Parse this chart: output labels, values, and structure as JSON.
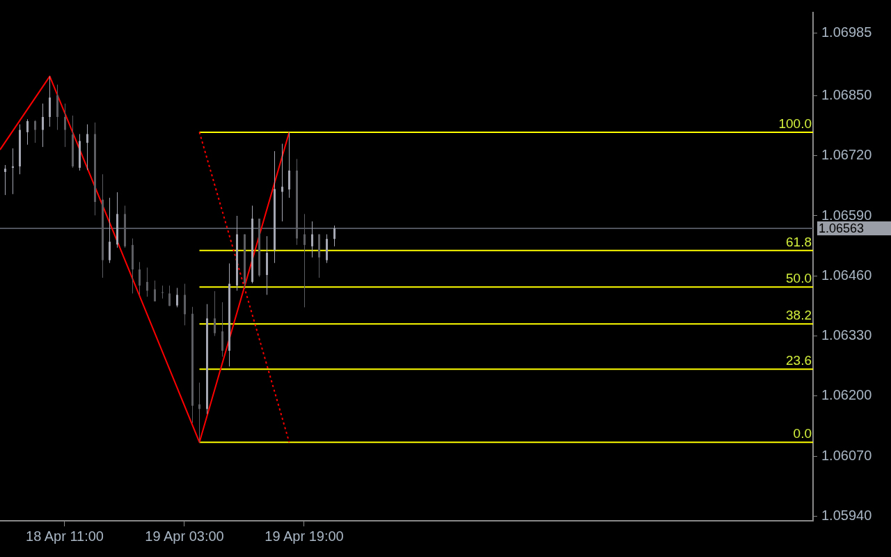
{
  "chart_data": {
    "type": "candlestick",
    "x": [
      "--04-18T03:00",
      "--04-18T04:00",
      "--04-18T05:00",
      "--04-18T06:00",
      "--04-18T07:00",
      "--04-18T08:00",
      "--04-18T09:00",
      "--04-18T10:00",
      "--04-18T11:00",
      "--04-18T12:00",
      "--04-18T13:00",
      "--04-18T14:00",
      "--04-18T15:00",
      "--04-18T16:00",
      "--04-18T17:00",
      "--04-18T18:00",
      "--04-18T19:00",
      "--04-18T20:00",
      "--04-18T21:00",
      "--04-18T22:00",
      "--04-18T23:00",
      "--04-19T00:00",
      "--04-19T01:00",
      "--04-19T02:00",
      "--04-19T03:00",
      "--04-19T04:00",
      "--04-19T05:00",
      "--04-19T06:00",
      "--04-19T07:00",
      "--04-19T08:00",
      "--04-19T09:00",
      "--04-19T10:00",
      "--04-19T11:00",
      "--04-19T12:00",
      "--04-19T13:00",
      "--04-19T14:00",
      "--04-19T15:00",
      "--04-19T16:00",
      "--04-19T17:00",
      "--04-19T18:00",
      "--04-19T19:00",
      "--04-19T20:00",
      "--04-19T21:00",
      "--04-19T22:00",
      "--04-19T23:00"
    ],
    "ohlc": [
      [
        1.06685,
        1.067,
        1.06635,
        1.06692
      ],
      [
        1.06694,
        1.06736,
        1.06637,
        1.06697
      ],
      [
        1.06697,
        1.06788,
        1.0668,
        1.06776
      ],
      [
        1.06771,
        1.06799,
        1.06744,
        1.06795
      ],
      [
        1.06795,
        1.06797,
        1.06748,
        1.06776
      ],
      [
        1.06776,
        1.06833,
        1.06739,
        1.06804
      ],
      [
        1.06804,
        1.06892,
        1.06783,
        1.06846
      ],
      [
        1.06851,
        1.06874,
        1.06776,
        1.06804
      ],
      [
        1.06804,
        1.06833,
        1.06739,
        1.06776
      ],
      [
        1.06766,
        1.06807,
        1.06694,
        1.06697
      ],
      [
        1.06694,
        1.06767,
        1.06688,
        1.06752
      ],
      [
        1.06748,
        1.06788,
        1.06689,
        1.06767
      ],
      [
        1.06767,
        1.06792,
        1.06591,
        1.0662
      ],
      [
        1.06625,
        1.0668,
        1.06456,
        1.06494
      ],
      [
        1.06494,
        1.06629,
        1.06488,
        1.06534
      ],
      [
        1.06528,
        1.06641,
        1.06521,
        1.06594
      ],
      [
        1.06594,
        1.06612,
        1.06521,
        1.06524
      ],
      [
        1.06527,
        1.06541,
        1.06422,
        1.06474
      ],
      [
        1.06474,
        1.0649,
        1.06419,
        1.06439
      ],
      [
        1.06447,
        1.06478,
        1.06415,
        1.06428
      ],
      [
        1.06431,
        1.0645,
        1.06405,
        1.06405
      ],
      [
        1.06424,
        1.06439,
        1.06411,
        1.06424
      ],
      [
        1.06422,
        1.06439,
        1.06395,
        1.06395
      ],
      [
        1.06396,
        1.06434,
        1.06392,
        1.06419
      ],
      [
        1.06419,
        1.06443,
        1.06353,
        1.06377
      ],
      [
        1.06378,
        1.06393,
        1.06142,
        1.06179
      ],
      [
        1.06182,
        1.06229,
        1.061,
        1.06172
      ],
      [
        1.06172,
        1.06399,
        1.06161,
        1.06368
      ],
      [
        1.06368,
        1.06427,
        1.0633,
        1.06336
      ],
      [
        1.0634,
        1.06403,
        1.06285,
        1.06298
      ],
      [
        1.06298,
        1.06487,
        1.06264,
        1.06443
      ],
      [
        1.06439,
        1.0659,
        1.06428,
        1.0655
      ],
      [
        1.0655,
        1.0655,
        1.06433,
        1.06444
      ],
      [
        1.06447,
        1.06612,
        1.06444,
        1.06584
      ],
      [
        1.06584,
        1.06584,
        1.06458,
        1.06461
      ],
      [
        1.06462,
        1.06546,
        1.06419,
        1.0651
      ],
      [
        1.06516,
        1.0673,
        1.06488,
        1.06648
      ],
      [
        1.06642,
        1.06746,
        1.06578,
        1.06653
      ],
      [
        1.06647,
        1.06771,
        1.06629,
        1.06688
      ],
      [
        1.06688,
        1.06713,
        1.06527,
        1.06541
      ],
      [
        1.0655,
        1.06594,
        1.06392,
        1.06527
      ],
      [
        1.06524,
        1.06578,
        1.065,
        1.0655
      ],
      [
        1.0655,
        1.0655,
        1.06456,
        1.065
      ],
      [
        1.06494,
        1.0655,
        1.06488,
        1.0654
      ],
      [
        1.0654,
        1.06569,
        1.06524,
        1.06563
      ]
    ],
    "colors": [
      "#a5a8b3",
      "#a5a8b3",
      "#a5a8b3",
      "#a5a8b3",
      "#5d5e63",
      "#a5a8b3",
      "#a5a8b3",
      "#5d5e63",
      "#5d5e63",
      "#5d5e63",
      "#a5a8b3",
      "#a5a8b3",
      "#5d5e63",
      "#5d5e63",
      "#a5a8b3",
      "#a5a8b3",
      "#5d5e63",
      "#5d5e63",
      "#5d5e63",
      "#5d5e63",
      "#5d5e63",
      "#5d5e63",
      "#5d5e63",
      "#a5a8b3",
      "#5d5e63",
      "#5d5e63",
      "#5d5e63",
      "#a5a8b3",
      "#5d5e63",
      "#5d5e63",
      "#a5a8b3",
      "#a5a8b3",
      "#5d5e63",
      "#a5a8b3",
      "#5d5e63",
      "#a5a8b3",
      "#a5a8b3",
      "#a5a8b3",
      "#a5a8b3",
      "#5d5e63",
      "#5d5e63",
      "#a5a8b3",
      "#5d5e63",
      "#a5a8b3",
      "#a5a8b3"
    ],
    "series": [
      {
        "type": "line",
        "color": "#ff0000",
        "x": [
          "--04-18T02:21",
          "--04-18T09:00",
          "--04-19T05:00",
          "--04-19T17:00"
        ],
        "values": [
          1.06733,
          1.06892,
          1.061,
          1.06771
        ]
      },
      {
        "type": "line",
        "color": "#ff0000",
        "line_style": "dotted",
        "x": [
          "--04-19T05:00",
          "--04-19T17:00"
        ],
        "values": [
          1.06771,
          1.061
        ]
      },
      {
        "type": "line",
        "color": "#ffff00",
        "x": [
          "--04-19T05:00",
          "--04-22T15:00"
        ],
        "values": [
          1.06771,
          1.06771
        ]
      },
      {
        "type": "line",
        "color": "#ffff00",
        "x": [
          "--04-19T05:00",
          "--04-22T15:00"
        ],
        "values": [
          1.06515,
          1.06515
        ]
      },
      {
        "type": "line",
        "color": "#ffff00",
        "x": [
          "--04-19T05:00",
          "--04-22T15:00"
        ],
        "values": [
          1.06436,
          1.06436
        ]
      },
      {
        "type": "line",
        "color": "#ffff00",
        "x": [
          "--04-19T05:00",
          "--04-22T15:00"
        ],
        "values": [
          1.06356,
          1.06356
        ]
      },
      {
        "type": "line",
        "color": "#ffff00",
        "x": [
          "--04-19T05:00",
          "--04-22T15:00"
        ],
        "values": [
          1.06258,
          1.06258
        ]
      },
      {
        "type": "line",
        "color": "#ffff00",
        "x": [
          "--04-19T05:00",
          "--04-22T15:00"
        ],
        "values": [
          1.061,
          1.061
        ]
      }
    ],
    "annotations": [
      {
        "text": "100.0",
        "y": 1.06771
      },
      {
        "text": "61.8",
        "y": 1.06515
      },
      {
        "text": "50.0",
        "y": 1.06436
      },
      {
        "text": "38.2",
        "y": 1.06356
      },
      {
        "text": "23.6",
        "y": 1.06258
      },
      {
        "text": "0.0",
        "y": 1.061
      }
    ],
    "ref_lines": [
      {
        "axis": "y",
        "value": 1.06563,
        "label": "1.06563",
        "color": "#50545c"
      }
    ],
    "xlim": [
      "--04-18T02:21",
      "--04-22T15:00"
    ],
    "xticks": [
      {
        "value": "--04-18T11:00",
        "label": "18 Apr 11:00"
      },
      {
        "value": "--04-19T03:00",
        "label": "19 Apr 03:00"
      },
      {
        "value": "--04-19T19:00",
        "label": "19 Apr 19:00"
      }
    ],
    "ylim": [
      1.0593,
      1.0703
    ],
    "yticks": [
      {
        "value": 1.0594,
        "label": "1.05940"
      },
      {
        "value": 1.0607,
        "label": "1.06070"
      },
      {
        "value": 1.062,
        "label": "1.06200"
      },
      {
        "value": 1.0633,
        "label": "1.06330"
      },
      {
        "value": 1.0646,
        "label": "1.06460"
      },
      {
        "value": 1.0659,
        "label": "1.06590"
      },
      {
        "value": 1.0672,
        "label": "1.06720"
      },
      {
        "value": 1.0685,
        "label": "1.06850"
      },
      {
        "value": 1.06985,
        "label": "1.06985"
      }
    ],
    "marker": "none"
  }
}
